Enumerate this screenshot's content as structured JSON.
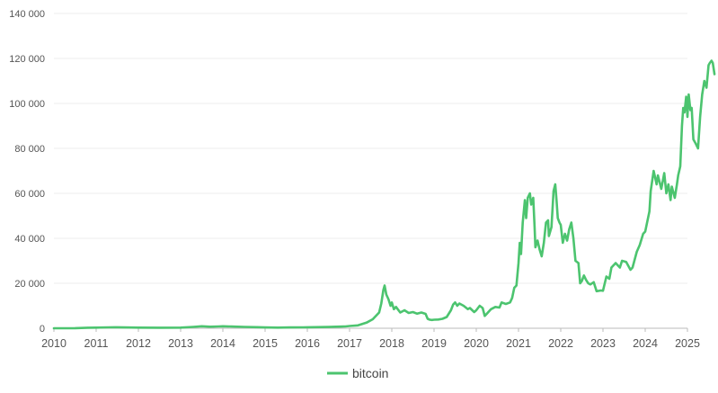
{
  "chart_data": {
    "type": "line",
    "title": "",
    "xlabel": "",
    "ylabel": "",
    "xlim": [
      2010,
      2025
    ],
    "ylim": [
      0,
      140000
    ],
    "grid": "horizontal",
    "legend_position": "bottom-center",
    "line_color": "#4cc46f",
    "y_ticks": [
      {
        "value": 0,
        "label": "0"
      },
      {
        "value": 20000,
        "label": "20 000"
      },
      {
        "value": 40000,
        "label": "40 000"
      },
      {
        "value": 60000,
        "label": "60 000"
      },
      {
        "value": 80000,
        "label": "80 000"
      },
      {
        "value": 100000,
        "label": "100 000"
      },
      {
        "value": 120000,
        "label": "120 000"
      },
      {
        "value": 140000,
        "label": "140 000"
      }
    ],
    "x_ticks": [
      {
        "value": 2010,
        "label": "2010"
      },
      {
        "value": 2011,
        "label": "2011"
      },
      {
        "value": 2012,
        "label": "2012"
      },
      {
        "value": 2013,
        "label": "2013"
      },
      {
        "value": 2014,
        "label": "2014"
      },
      {
        "value": 2015,
        "label": "2015"
      },
      {
        "value": 2016,
        "label": "2016"
      },
      {
        "value": 2017,
        "label": "2017"
      },
      {
        "value": 2018,
        "label": "2018"
      },
      {
        "value": 2019,
        "label": "2019"
      },
      {
        "value": 2020,
        "label": "2020"
      },
      {
        "value": 2021,
        "label": "2021"
      },
      {
        "value": 2022,
        "label": "2022"
      },
      {
        "value": 2023,
        "label": "2023"
      },
      {
        "value": 2024,
        "label": "2024"
      },
      {
        "value": 2025,
        "label": "2025"
      }
    ],
    "series": [
      {
        "name": "bitcoin",
        "points": [
          [
            2010.0,
            0
          ],
          [
            2010.5,
            50
          ],
          [
            2010.8,
            250
          ],
          [
            2011.0,
            300
          ],
          [
            2011.3,
            400
          ],
          [
            2011.5,
            450
          ],
          [
            2012.0,
            300
          ],
          [
            2012.5,
            250
          ],
          [
            2013.0,
            300
          ],
          [
            2013.3,
            600
          ],
          [
            2013.5,
            900
          ],
          [
            2013.7,
            700
          ],
          [
            2013.9,
            800
          ],
          [
            2014.0,
            900
          ],
          [
            2014.2,
            750
          ],
          [
            2014.5,
            600
          ],
          [
            2014.8,
            500
          ],
          [
            2015.0,
            350
          ],
          [
            2015.3,
            300
          ],
          [
            2015.6,
            350
          ],
          [
            2015.9,
            400
          ],
          [
            2016.0,
            430
          ],
          [
            2016.5,
            550
          ],
          [
            2016.9,
            800
          ],
          [
            2017.0,
            1000
          ],
          [
            2017.2,
            1300
          ],
          [
            2017.4,
            2500
          ],
          [
            2017.55,
            4000
          ],
          [
            2017.7,
            7000
          ],
          [
            2017.75,
            11000
          ],
          [
            2017.8,
            17000
          ],
          [
            2017.83,
            19000
          ],
          [
            2017.87,
            15000
          ],
          [
            2017.92,
            13000
          ],
          [
            2017.97,
            10000
          ],
          [
            2018.0,
            11500
          ],
          [
            2018.05,
            8500
          ],
          [
            2018.1,
            9500
          ],
          [
            2018.2,
            7000
          ],
          [
            2018.3,
            8000
          ],
          [
            2018.4,
            6800
          ],
          [
            2018.5,
            7200
          ],
          [
            2018.6,
            6500
          ],
          [
            2018.7,
            7000
          ],
          [
            2018.8,
            6400
          ],
          [
            2018.85,
            4200
          ],
          [
            2018.9,
            3800
          ],
          [
            2018.95,
            3700
          ],
          [
            2019.0,
            3800
          ],
          [
            2019.1,
            3900
          ],
          [
            2019.2,
            4200
          ],
          [
            2019.3,
            5000
          ],
          [
            2019.4,
            8000
          ],
          [
            2019.45,
            10500
          ],
          [
            2019.5,
            11500
          ],
          [
            2019.55,
            10000
          ],
          [
            2019.6,
            11000
          ],
          [
            2019.7,
            10000
          ],
          [
            2019.8,
            8500
          ],
          [
            2019.85,
            9000
          ],
          [
            2019.95,
            7200
          ],
          [
            2020.0,
            8000
          ],
          [
            2020.08,
            10000
          ],
          [
            2020.15,
            9000
          ],
          [
            2020.2,
            5500
          ],
          [
            2020.25,
            6500
          ],
          [
            2020.35,
            8500
          ],
          [
            2020.45,
            9500
          ],
          [
            2020.55,
            9200
          ],
          [
            2020.6,
            11500
          ],
          [
            2020.7,
            10800
          ],
          [
            2020.8,
            11500
          ],
          [
            2020.85,
            13500
          ],
          [
            2020.9,
            18000
          ],
          [
            2020.95,
            19000
          ],
          [
            2021.0,
            29000
          ],
          [
            2021.03,
            38000
          ],
          [
            2021.06,
            33000
          ],
          [
            2021.1,
            47000
          ],
          [
            2021.15,
            57000
          ],
          [
            2021.18,
            49000
          ],
          [
            2021.22,
            58000
          ],
          [
            2021.27,
            60000
          ],
          [
            2021.3,
            55000
          ],
          [
            2021.35,
            58000
          ],
          [
            2021.38,
            45000
          ],
          [
            2021.4,
            36000
          ],
          [
            2021.45,
            39000
          ],
          [
            2021.5,
            35000
          ],
          [
            2021.55,
            32000
          ],
          [
            2021.6,
            38000
          ],
          [
            2021.65,
            47000
          ],
          [
            2021.7,
            48000
          ],
          [
            2021.72,
            41000
          ],
          [
            2021.78,
            45000
          ],
          [
            2021.83,
            61000
          ],
          [
            2021.87,
            64000
          ],
          [
            2021.9,
            57000
          ],
          [
            2021.93,
            49000
          ],
          [
            2021.97,
            47000
          ],
          [
            2022.0,
            46000
          ],
          [
            2022.05,
            38000
          ],
          [
            2022.1,
            42000
          ],
          [
            2022.15,
            39000
          ],
          [
            2022.2,
            44000
          ],
          [
            2022.25,
            47000
          ],
          [
            2022.3,
            40000
          ],
          [
            2022.35,
            30000
          ],
          [
            2022.42,
            29000
          ],
          [
            2022.46,
            20000
          ],
          [
            2022.5,
            21000
          ],
          [
            2022.55,
            23500
          ],
          [
            2022.6,
            21500
          ],
          [
            2022.65,
            20000
          ],
          [
            2022.7,
            19500
          ],
          [
            2022.78,
            20500
          ],
          [
            2022.85,
            16500
          ],
          [
            2022.95,
            16800
          ],
          [
            2023.0,
            16700
          ],
          [
            2023.08,
            23000
          ],
          [
            2023.15,
            22000
          ],
          [
            2023.2,
            27000
          ],
          [
            2023.3,
            29000
          ],
          [
            2023.4,
            27000
          ],
          [
            2023.45,
            30000
          ],
          [
            2023.55,
            29500
          ],
          [
            2023.65,
            26000
          ],
          [
            2023.7,
            27000
          ],
          [
            2023.8,
            34000
          ],
          [
            2023.87,
            37000
          ],
          [
            2023.95,
            42000
          ],
          [
            2024.0,
            43000
          ],
          [
            2024.1,
            52000
          ],
          [
            2024.13,
            61000
          ],
          [
            2024.2,
            70000
          ],
          [
            2024.27,
            64000
          ],
          [
            2024.3,
            68000
          ],
          [
            2024.38,
            62000
          ],
          [
            2024.45,
            69000
          ],
          [
            2024.5,
            60000
          ],
          [
            2024.55,
            64000
          ],
          [
            2024.6,
            57000
          ],
          [
            2024.63,
            63000
          ],
          [
            2024.7,
            58000
          ],
          [
            2024.75,
            64000
          ],
          [
            2024.78,
            68000
          ],
          [
            2024.83,
            72000
          ],
          [
            2024.87,
            90000
          ],
          [
            2024.9,
            98000
          ],
          [
            2024.93,
            96000
          ],
          [
            2024.97,
            103000
          ],
          [
            2025.0,
            94000
          ],
          [
            2025.03,
            104000
          ],
          [
            2025.07,
            97000
          ],
          [
            2025.1,
            98000
          ],
          [
            2025.14,
            84000
          ],
          [
            2025.2,
            82000
          ],
          [
            2025.25,
            80000
          ],
          [
            2025.3,
            94000
          ],
          [
            2025.35,
            104000
          ],
          [
            2025.4,
            110000
          ],
          [
            2025.45,
            107000
          ],
          [
            2025.5,
            117000
          ],
          [
            2025.53,
            118000
          ],
          [
            2025.57,
            119000
          ],
          [
            2025.6,
            118000
          ],
          [
            2025.64,
            113000
          ]
        ]
      }
    ]
  }
}
